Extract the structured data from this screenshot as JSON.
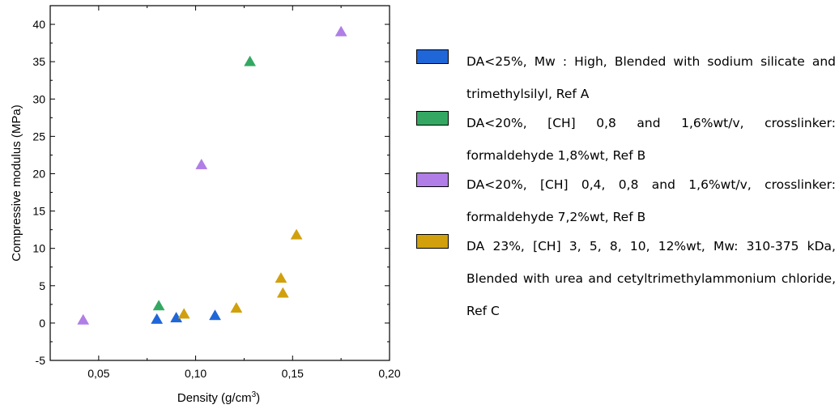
{
  "chart_data": {
    "type": "scatter",
    "title": "",
    "xlabel": "Density (g/cm",
    "xlabel_superscript": "3",
    "xlabel_suffix": ")",
    "ylabel": "Compressive modulus (MPa)",
    "xlim": [
      0.025,
      0.2
    ],
    "ylim": [
      -5,
      42.5
    ],
    "x_ticks": [
      0.05,
      0.1,
      0.15,
      0.2
    ],
    "x_tick_labels": [
      "0,05",
      "0,10",
      "0,15",
      "0,20"
    ],
    "y_ticks": [
      -5,
      0,
      5,
      10,
      15,
      20,
      25,
      30,
      35,
      40
    ],
    "y_tick_labels": [
      "-5",
      "0",
      "5",
      "10",
      "15",
      "20",
      "25",
      "30",
      "35",
      "40"
    ],
    "grid": false,
    "legend_position": "right",
    "marker": "triangle",
    "series": [
      {
        "name": "DA<25%, Mw : High, Blended with sodium silicate and trimethylsilyl, Ref A",
        "color": "#1f66d8",
        "points": [
          [
            0.08,
            0.5
          ],
          [
            0.09,
            0.7
          ],
          [
            0.11,
            1.0
          ]
        ]
      },
      {
        "name": "DA<20%, [CH] 0,8 and 1,6%wt/v, crosslinker: formaldehyde 1,8%wt, Ref B",
        "color": "#34a862",
        "points": [
          [
            0.081,
            2.3
          ],
          [
            0.128,
            35.0
          ]
        ]
      },
      {
        "name": "DA<20%, [CH] 0,4, 0,8 and 1,6%wt/v, crosslinker: formaldehyde 7,2%wt, Ref B",
        "color": "#b07ee6",
        "points": [
          [
            0.042,
            0.4
          ],
          [
            0.103,
            21.2
          ],
          [
            0.175,
            39.0
          ]
        ]
      },
      {
        "name": "DA 23%, [CH] 3, 5, 8, 10, 12%wt, Mw: 310-375 kDa, Blended with urea and cetyltrimethylammonium chloride, Ref C",
        "color": "#d1a00c",
        "points": [
          [
            0.094,
            1.2
          ],
          [
            0.121,
            2.0
          ],
          [
            0.144,
            6.0
          ],
          [
            0.145,
            4.0
          ],
          [
            0.152,
            11.8
          ]
        ]
      }
    ]
  }
}
